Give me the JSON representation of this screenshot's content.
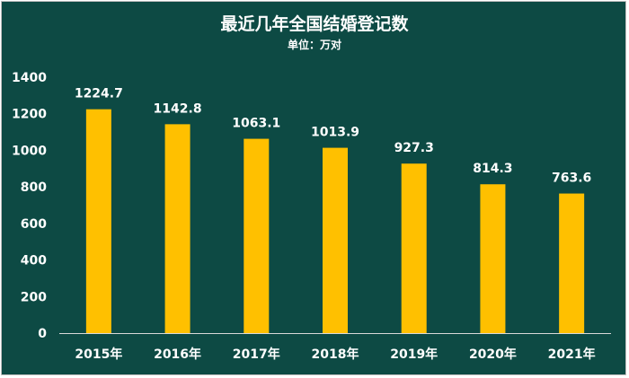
{
  "chart_data": {
    "type": "bar",
    "title": "最近几年全国结婚登记数",
    "subtitle": "单位：万对",
    "categories": [
      "2015年",
      "2016年",
      "2017年",
      "2018年",
      "2019年",
      "2020年",
      "2021年"
    ],
    "values": [
      1224.7,
      1142.8,
      1063.1,
      1013.9,
      927.3,
      814.3,
      763.6
    ],
    "data_labels": [
      "1224.7",
      "1142.8",
      "1063.1",
      "1013.9",
      "927.3",
      "814.3",
      "763.6"
    ],
    "ylim": [
      0,
      1400
    ],
    "yticks": [
      "0",
      "200",
      "400",
      "600",
      "800",
      "1000",
      "1200",
      "1400"
    ],
    "grid": false,
    "legend": "none",
    "colors": {
      "background": "#0d4a44",
      "bar": "#ffc000",
      "text": "#ffffff",
      "axis": "#d9d9d9"
    }
  }
}
